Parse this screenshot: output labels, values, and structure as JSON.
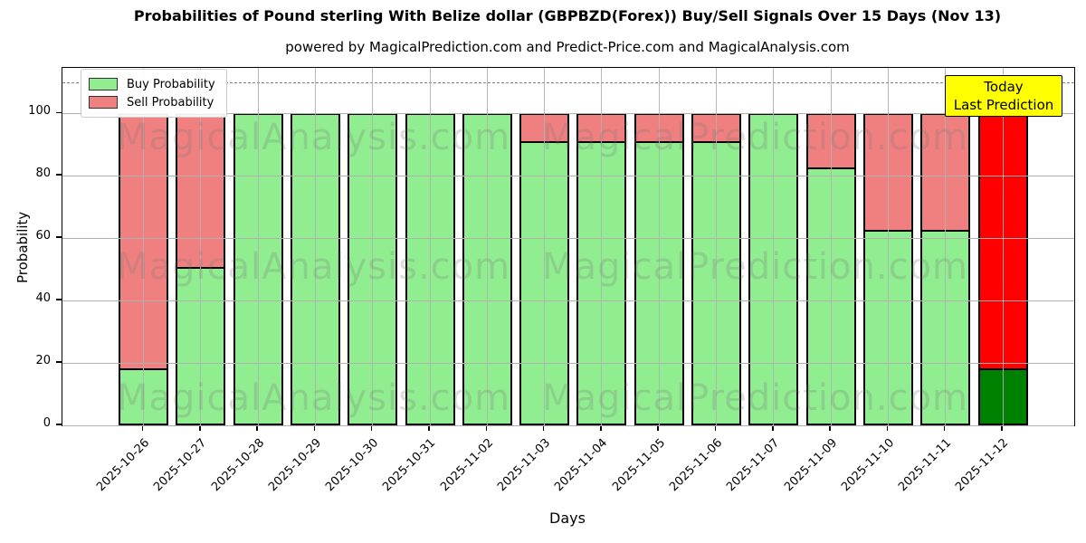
{
  "title": "Probabilities of Pound sterling With Belize dollar (GBPBZD(Forex)) Buy/Sell Signals Over 15 Days (Nov 13)",
  "subtitle": "powered by MagicalPrediction.com and Predict-Price.com and MagicalAnalysis.com",
  "axes": {
    "xlabel": "Days",
    "ylabel": "Probability",
    "yticks": [
      0,
      20,
      40,
      60,
      80,
      100
    ],
    "ylim": [
      0,
      114.5
    ],
    "grid": true,
    "dashed_guide_y": 110
  },
  "legend": {
    "position": "top-left",
    "items": [
      {
        "label": "Buy Probability",
        "color": "#90ee90"
      },
      {
        "label": "Sell Probability",
        "color": "#f08080"
      }
    ]
  },
  "annotation": {
    "lines": [
      "Today",
      "Last Prediction"
    ],
    "bg_color": "#ffff00"
  },
  "watermarks": {
    "left_text": "MagicalAnalysis.com",
    "right_text": "MagicalPrediction.com"
  },
  "chart_data": {
    "type": "bar",
    "stacked": true,
    "title": "Probabilities of Pound sterling With Belize dollar (GBPBZD(Forex)) Buy/Sell Signals Over 15 Days (Nov 13)",
    "xlabel": "Days",
    "ylabel": "Probability",
    "categories": [
      "2025-10-26",
      "2025-10-27",
      "2025-10-28",
      "2025-10-29",
      "2025-10-30",
      "2025-10-31",
      "2025-11-02",
      "2025-11-03",
      "2025-11-04",
      "2025-11-05",
      "2025-11-06",
      "2025-11-07",
      "2025-11-09",
      "2025-11-10",
      "2025-11-11",
      "2025-11-12"
    ],
    "series": [
      {
        "name": "Buy Probability",
        "color": "#90ee90",
        "values": [
          17,
          49.5,
          100,
          100,
          100,
          100,
          100,
          90,
          90,
          90,
          90,
          100,
          81.5,
          61.5,
          61.5,
          17
        ]
      },
      {
        "name": "Sell Probability",
        "color": "#f08080",
        "values": [
          83,
          50.5,
          0,
          0,
          0,
          0,
          0,
          10,
          10,
          10,
          10,
          0,
          18.5,
          38.5,
          38.5,
          83
        ]
      }
    ],
    "highlight_last_bar": {
      "buy_color": "#008000",
      "sell_color": "#ff0000"
    },
    "bar_edge_color": "#000000",
    "legend_position": "upper left"
  }
}
